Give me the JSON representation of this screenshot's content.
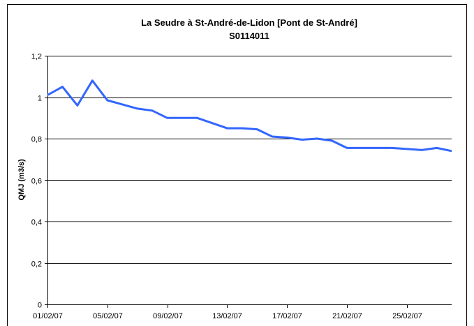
{
  "chart_data": {
    "type": "line",
    "title": [
      "La Seudre à St-André-de-Lidon [Pont de St-André]",
      "S0114011"
    ],
    "y_label": "QMJ (m3/s)",
    "categories": [
      "01/02/07",
      null,
      null,
      null,
      "05/02/07",
      null,
      null,
      null,
      "09/02/07",
      null,
      null,
      null,
      "13/02/07",
      null,
      null,
      null,
      "17/02/07",
      null,
      null,
      null,
      "21/02/07",
      null,
      null,
      null,
      "25/02/07",
      null,
      null,
      null
    ],
    "series": [
      {
        "name": "QMJ",
        "color": "#3366ff",
        "values": [
          1.01,
          1.05,
          0.96,
          1.08,
          0.985,
          0.965,
          0.945,
          0.935,
          0.9,
          0.9,
          0.9,
          0.875,
          0.85,
          0.85,
          0.845,
          0.81,
          0.805,
          0.795,
          0.8,
          0.79,
          0.755,
          0.755,
          0.755,
          0.755,
          0.75,
          0.745,
          0.755,
          0.74
        ]
      }
    ],
    "ylim": [
      0,
      1.2
    ],
    "yticks": [
      0,
      {
        "value": 0.2,
        "label": "0,2"
      },
      {
        "value": 0.4,
        "label": "0,4"
      },
      {
        "value": 0.6,
        "label": "0,6"
      },
      {
        "value": 0.8,
        "label": "0,8"
      },
      1,
      {
        "value": 1.2,
        "label": "1,2"
      }
    ],
    "grid": true
  }
}
